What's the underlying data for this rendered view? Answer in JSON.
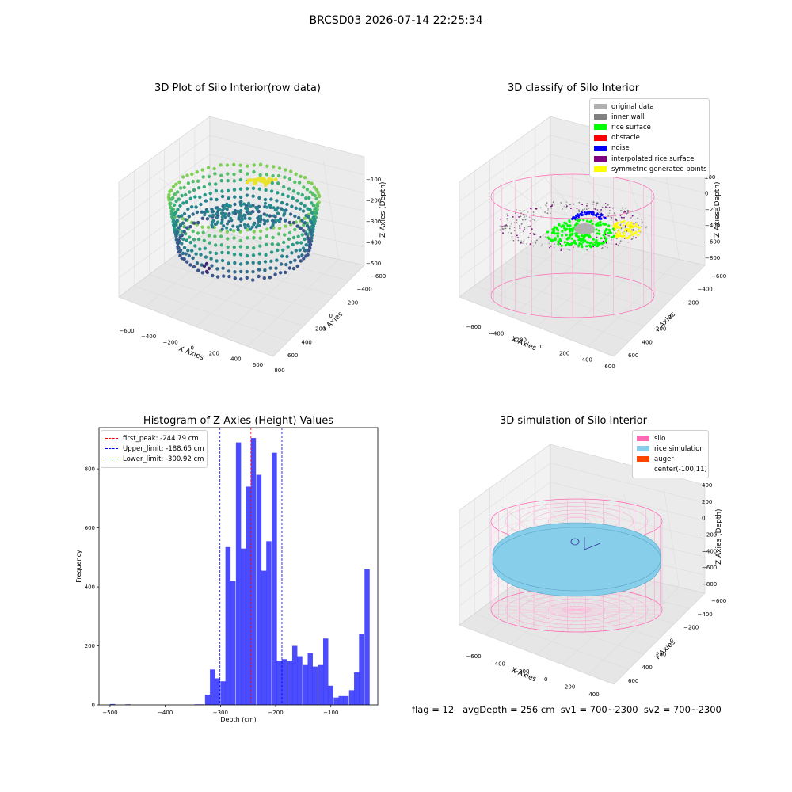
{
  "suptitle": "BRCSD03 2026-07-14 22:25:34",
  "footer": "flag = 12   avgDepth = 256 cm  sv1 = 700~2300  sv2 = 700~2300",
  "chart_data": [
    {
      "type": "scatter3d",
      "title": "3D Plot of Silo Interior(row data)",
      "xlabel": "X Axies",
      "ylabel": "Y Axies",
      "zlabel": "Z Axies (Depth)",
      "xticks": [
        "−600",
        "−400",
        "−200",
        "0",
        "200",
        "400",
        "600",
        "800"
      ],
      "yticks": [
        "−600",
        "−400",
        "−200",
        "0",
        "200",
        "400",
        "600"
      ],
      "zticks": [
        "−100",
        "−200",
        "−300",
        "−400",
        "−500"
      ],
      "colormap": "viridis"
    },
    {
      "type": "scatter3d",
      "title": "3D classify of Silo Interior",
      "xlabel": "X Axies",
      "ylabel": "Y Axies",
      "zlabel": "Z Axies (Depth)",
      "xticks": [
        "−600",
        "−400",
        "−200",
        "0",
        "200",
        "400",
        "600"
      ],
      "yticks": [
        "−600",
        "−400",
        "−200",
        "0",
        "200",
        "400",
        "600"
      ],
      "zticks": [
        "200",
        "0",
        "−200",
        "−400",
        "−600",
        "−800"
      ],
      "legend": [
        {
          "label": "original data",
          "color": "#b0b0b0"
        },
        {
          "label": "inner wall",
          "color": "#808080"
        },
        {
          "label": "rice surface",
          "color": "#00ff00"
        },
        {
          "label": "obstacle",
          "color": "#ff0000"
        },
        {
          "label": "noise",
          "color": "#0000ff"
        },
        {
          "label": "interpolated rice surface",
          "color": "#800080"
        },
        {
          "label": "symmetric generated points",
          "color": "#ffff00"
        }
      ]
    },
    {
      "type": "bar",
      "title": "Histogram of Z-Axies (Height) Values",
      "xlabel": "Depth (cm)",
      "ylabel": "Frequency",
      "xlim": [
        -520,
        -15
      ],
      "ylim": [
        0,
        940
      ],
      "xticks": [
        -500,
        -400,
        -300,
        -200,
        -100
      ],
      "xtick_labels": [
        "−500",
        "−400",
        "−300",
        "−200",
        "−100"
      ],
      "yticks": [
        0,
        200,
        400,
        600,
        800
      ],
      "bin_width": 9.3,
      "bar_color": "#0000ff",
      "bins": [
        [
          -500,
          3
        ],
        [
          -472,
          2
        ],
        [
          -347,
          2
        ],
        [
          -338,
          2
        ],
        [
          -328,
          35
        ],
        [
          -319,
          120
        ],
        [
          -310,
          90
        ],
        [
          -300,
          80
        ],
        [
          -291,
          535
        ],
        [
          -282,
          420
        ],
        [
          -272,
          890
        ],
        [
          -263,
          530
        ],
        [
          -254,
          740
        ],
        [
          -245,
          905
        ],
        [
          -235,
          780
        ],
        [
          -226,
          455
        ],
        [
          -217,
          555
        ],
        [
          -207,
          855
        ],
        [
          -198,
          150
        ],
        [
          -189,
          155
        ],
        [
          -179,
          150
        ],
        [
          -170,
          200
        ],
        [
          -161,
          165
        ],
        [
          -151,
          135
        ],
        [
          -142,
          175
        ],
        [
          -133,
          130
        ],
        [
          -123,
          135
        ],
        [
          -114,
          225
        ],
        [
          -105,
          65
        ],
        [
          -95,
          25
        ],
        [
          -86,
          30
        ],
        [
          -77,
          30
        ],
        [
          -67,
          50
        ],
        [
          -58,
          110
        ],
        [
          -49,
          240
        ],
        [
          -39,
          460
        ]
      ],
      "lines": [
        {
          "label": "first_peak: -244.79 cm",
          "x": -244.79,
          "color": "#ff0000"
        },
        {
          "label": "Upper_limit: -188.65 cm",
          "x": -188.65,
          "color": "#0000ff"
        },
        {
          "label": "Lower_limit: -300.92 cm",
          "x": -300.92,
          "color": "#0000ff"
        }
      ]
    },
    {
      "type": "surface3d",
      "title": "3D simulation of Silo Interior",
      "xlabel": "X Axies",
      "ylabel": "Y Axies",
      "zlabel": "Z Axies (Depth)",
      "xticks": [
        "−600",
        "−400",
        "−200",
        "0",
        "200",
        "400"
      ],
      "yticks": [
        "−600",
        "−400",
        "−200",
        "0",
        "200",
        "400",
        "600"
      ],
      "zticks": [
        "400",
        "200",
        "0",
        "−200",
        "−400",
        "−600",
        "−800"
      ],
      "legend": [
        {
          "label": "silo",
          "color": "#ff69b4"
        },
        {
          "label": "rice simulation",
          "color": "#87ceeb"
        },
        {
          "label": "auger",
          "color": "#ff4500"
        },
        {
          "label": "center(-100,11)",
          "color": "none"
        }
      ]
    }
  ]
}
